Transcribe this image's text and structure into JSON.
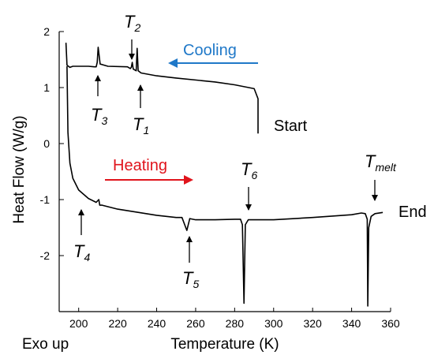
{
  "chart_data": {
    "type": "line",
    "xlabel": "Temperature (K)",
    "ylabel": "Heat Flow (W/g)",
    "corner_note": "Exo up",
    "xlim": [
      190,
      360
    ],
    "ylim": [
      -3,
      2
    ],
    "x_ticks": [
      200,
      220,
      240,
      260,
      280,
      300,
      320,
      340,
      360
    ],
    "y_ticks": [
      2,
      1,
      0,
      -1,
      -2
    ],
    "grid": false,
    "series": [
      {
        "direction": "cooling",
        "x": [
          292,
          292,
          290,
          280,
          270,
          250,
          240,
          232,
          230.5,
          230,
          229.5,
          228,
          227.5,
          227,
          226.5,
          225,
          215,
          211,
          210,
          209.5,
          209,
          208,
          205,
          200,
          197,
          195.5,
          194,
          193.5
        ],
        "y": [
          0.18,
          0.8,
          0.98,
          1.05,
          1.1,
          1.17,
          1.21,
          1.26,
          1.3,
          1.7,
          1.3,
          1.33,
          1.45,
          1.36,
          1.34,
          1.37,
          1.38,
          1.42,
          1.72,
          1.45,
          1.37,
          1.37,
          1.38,
          1.38,
          1.38,
          1.36,
          1.4,
          1.8
        ]
      },
      {
        "direction": "heating",
        "x": [
          194,
          194.5,
          195.5,
          197,
          200,
          205,
          209,
          210.3,
          210.8,
          212,
          220,
          240,
          250,
          253,
          255.5,
          257,
          260,
          270,
          280,
          283,
          284,
          284.8,
          285.5,
          287,
          290,
          300,
          320,
          340,
          345,
          347,
          348,
          348.3,
          348.8,
          350,
          352,
          356
        ],
        "y": [
          1.38,
          0.2,
          -0.35,
          -0.62,
          -0.83,
          -0.98,
          -1.05,
          -1.0,
          -1.1,
          -1.1,
          -1.17,
          -1.28,
          -1.32,
          -1.32,
          -1.55,
          -1.34,
          -1.36,
          -1.36,
          -1.35,
          -1.35,
          -1.45,
          -2.85,
          -1.45,
          -1.36,
          -1.36,
          -1.36,
          -1.32,
          -1.27,
          -1.24,
          -1.25,
          -1.35,
          -2.9,
          -1.5,
          -1.3,
          -1.25,
          -1.23
        ]
      }
    ],
    "annotations": {
      "cooling": "Cooling",
      "heating": "Heating",
      "start": "Start",
      "end": "End",
      "t1": {
        "letter": "T",
        "sub": "1"
      },
      "t2": {
        "letter": "T",
        "sub": "2"
      },
      "t3": {
        "letter": "T",
        "sub": "3"
      },
      "t4": {
        "letter": "T",
        "sub": "4"
      },
      "t5": {
        "letter": "T",
        "sub": "5"
      },
      "t6": {
        "letter": "T",
        "sub": "6"
      },
      "tmelt": {
        "letter": "T",
        "sub": "melt"
      }
    },
    "colors": {
      "cooling_arrow": "#1f78c8",
      "heating_arrow": "#e0141c",
      "curve": "#000000"
    }
  }
}
